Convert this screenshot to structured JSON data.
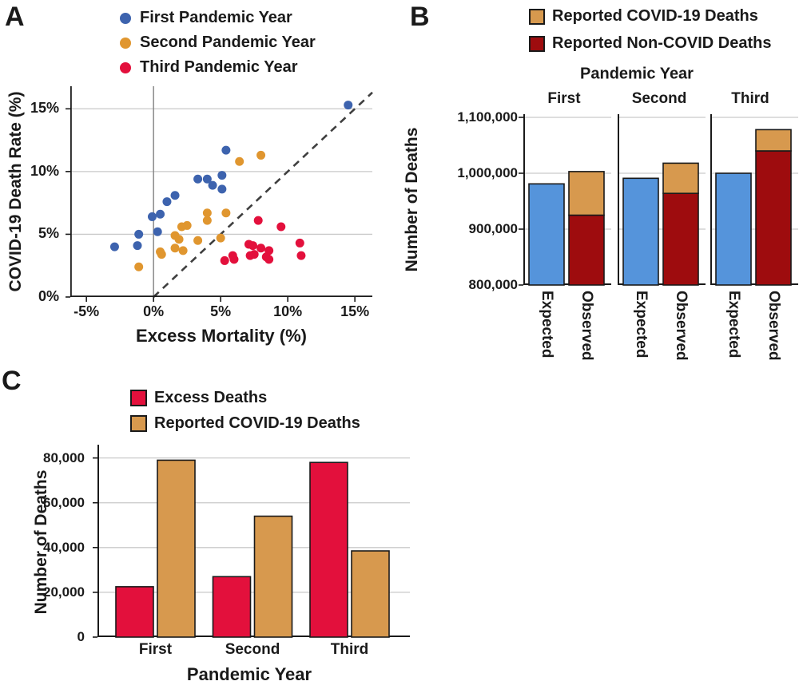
{
  "palette": {
    "text": "#1a1a1a",
    "axis": "#1a1a1a",
    "grid": "#c9c9c9",
    "zero_line": "#808080",
    "dashed_line": "#3f3f3f",
    "scatter_blue": "#3d63ae",
    "scatter_orange": "#e0962f",
    "scatter_red": "#e3103c",
    "bar_blue": "#5594db",
    "bar_tan": "#d7994e",
    "bar_darkred": "#9e0c0e",
    "bar_crimson": "#e3103c"
  },
  "chart_data": [
    {
      "id": "A",
      "panel_label": "A",
      "type": "scatter",
      "xlabel": "Excess Mortality (%)",
      "ylabel": "COVID-19 Death Rate (%)",
      "xlim": [
        -6.2,
        16.3
      ],
      "ylim": [
        0,
        16.8
      ],
      "xticks": [
        -5,
        0,
        5,
        10,
        15
      ],
      "xtick_labels": [
        "-5%",
        "0%",
        "5%",
        "10%",
        "15%"
      ],
      "yticks": [
        0,
        5,
        10,
        15
      ],
      "ytick_labels": [
        "0%",
        "5%",
        "10%",
        "15%"
      ],
      "grid_y": [
        5,
        10,
        15
      ],
      "zero_vline_x": 0,
      "identity_line": {
        "from": [
          0,
          0
        ],
        "to": [
          16.3,
          16.3
        ],
        "style": "dashed"
      },
      "legend_position": "top",
      "series": [
        {
          "name": "First Pandemic Year",
          "color": "#3d63ae",
          "points": [
            [
              14.5,
              15.3
            ],
            [
              5.4,
              11.7
            ],
            [
              5.1,
              9.7
            ],
            [
              4.0,
              9.4
            ],
            [
              3.3,
              9.4
            ],
            [
              4.4,
              8.9
            ],
            [
              5.1,
              8.6
            ],
            [
              1.6,
              8.1
            ],
            [
              1.0,
              7.6
            ],
            [
              0.5,
              6.6
            ],
            [
              -0.1,
              6.4
            ],
            [
              0.3,
              5.2
            ],
            [
              -1.1,
              5.0
            ],
            [
              -1.2,
              4.1
            ],
            [
              -2.9,
              4.0
            ]
          ]
        },
        {
          "name": "Second Pandemic Year",
          "color": "#e0962f",
          "points": [
            [
              8.0,
              11.3
            ],
            [
              6.4,
              10.8
            ],
            [
              5.4,
              6.7
            ],
            [
              4.0,
              6.7
            ],
            [
              4.0,
              6.1
            ],
            [
              2.5,
              5.7
            ],
            [
              2.1,
              5.6
            ],
            [
              5.0,
              4.7
            ],
            [
              1.6,
              4.9
            ],
            [
              1.9,
              4.6
            ],
            [
              3.3,
              4.5
            ],
            [
              1.6,
              3.9
            ],
            [
              2.2,
              3.7
            ],
            [
              0.5,
              3.6
            ],
            [
              0.6,
              3.4
            ],
            [
              -1.1,
              2.4
            ]
          ]
        },
        {
          "name": "Third Pandemic Year",
          "color": "#e3103c",
          "points": [
            [
              7.8,
              6.1
            ],
            [
              9.5,
              5.6
            ],
            [
              10.9,
              4.3
            ],
            [
              7.1,
              4.2
            ],
            [
              7.4,
              4.1
            ],
            [
              8.0,
              3.9
            ],
            [
              8.6,
              3.7
            ],
            [
              7.5,
              3.4
            ],
            [
              7.2,
              3.3
            ],
            [
              5.9,
              3.3
            ],
            [
              11.0,
              3.3
            ],
            [
              8.4,
              3.2
            ],
            [
              8.6,
              3.0
            ],
            [
              6.0,
              3.0
            ],
            [
              5.3,
              2.9
            ]
          ]
        }
      ]
    },
    {
      "id": "B",
      "panel_label": "B",
      "type": "bar",
      "group_title": "Pandemic Year",
      "groups": [
        "First",
        "Second",
        "Third"
      ],
      "bar_labels": [
        "Expected",
        "Observed"
      ],
      "ylabel": "Number of Deaths",
      "ylim": [
        800000,
        1100000
      ],
      "yticks": [
        800000,
        900000,
        1000000,
        1100000
      ],
      "ytick_labels": [
        "800,000",
        "900,000",
        "1,000,000",
        "1,100,000"
      ],
      "grid_y": [
        900000,
        1000000,
        1100000
      ],
      "expected_color": "#5594db",
      "legend": [
        {
          "label": "Reported COVID-19 Deaths",
          "color": "#d7994e"
        },
        {
          "label": "Reported Non-COVID Deaths",
          "color": "#9e0c0e"
        }
      ],
      "series": [
        {
          "group": "First",
          "expected": 981000,
          "observed_noncovid": 925000,
          "observed_covid": 78000
        },
        {
          "group": "Second",
          "expected": 991000,
          "observed_noncovid": 964000,
          "observed_covid": 54000
        },
        {
          "group": "Third",
          "expected": 1000000,
          "observed_noncovid": 1040000,
          "observed_covid": 38000
        }
      ]
    },
    {
      "id": "C",
      "panel_label": "C",
      "type": "bar",
      "xlabel": "Pandemic Year",
      "ylabel": "Number of Deaths",
      "categories": [
        "First",
        "Second",
        "Third"
      ],
      "ylim": [
        0,
        84500
      ],
      "yticks": [
        0,
        20000,
        40000,
        60000,
        80000
      ],
      "ytick_labels": [
        "0",
        "20,000",
        "40,000",
        "60,000",
        "80,000"
      ],
      "grid_y": [
        20000,
        40000,
        60000,
        80000
      ],
      "legend": [
        {
          "label": "Excess Deaths",
          "color": "#e3103c"
        },
        {
          "label": "Reported COVID-19 Deaths",
          "color": "#d7994e"
        }
      ],
      "series": [
        {
          "name": "Excess Deaths",
          "color": "#e3103c",
          "values": [
            22500,
            27000,
            78000
          ]
        },
        {
          "name": "Reported COVID-19 Deaths",
          "color": "#d7994e",
          "values": [
            79000,
            54000,
            38500
          ]
        }
      ]
    }
  ]
}
